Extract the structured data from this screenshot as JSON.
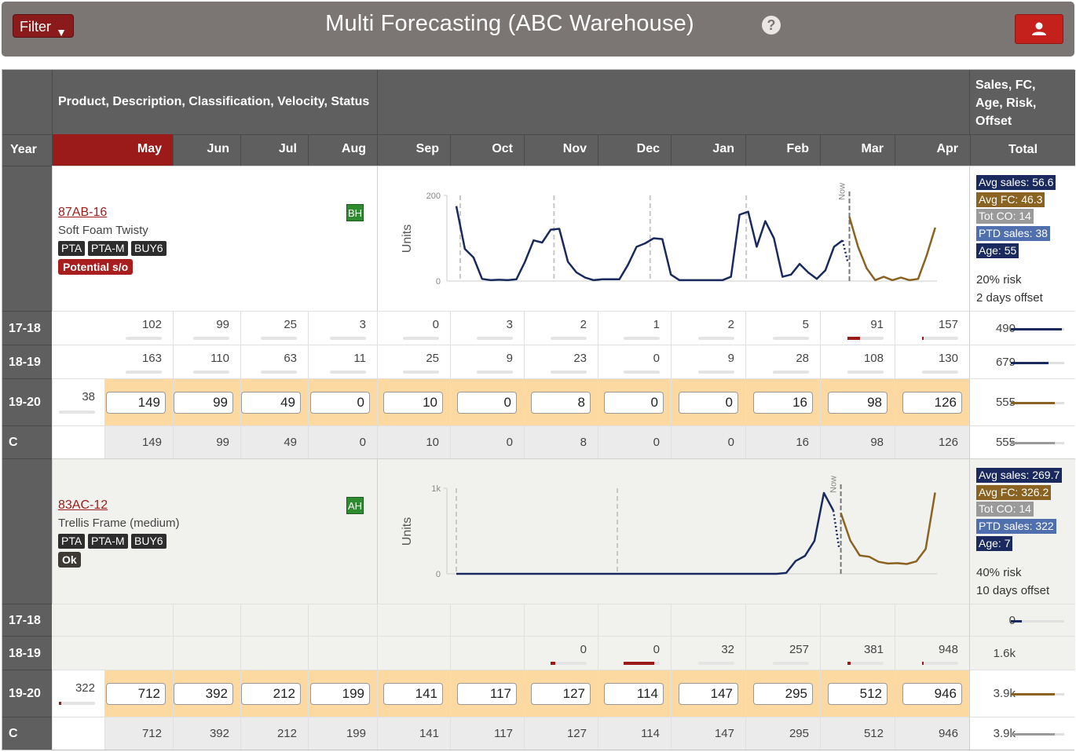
{
  "header": {
    "filter_label": "Filter",
    "filter_arrow": "▼",
    "title": "Multi Forecasting (ABC Warehouse)",
    "help_icon": "?",
    "user_icon": "user-icon"
  },
  "columns": {
    "info_header": "Product, Description, Classification, Velocity, Status",
    "total_header": "Sales, FC, Age, Risk, Offset",
    "year": "Year",
    "months": [
      "May",
      "Jun",
      "Jul",
      "Aug",
      "Sep",
      "Oct",
      "Nov",
      "Dec",
      "Jan",
      "Feb",
      "Mar",
      "Apr"
    ],
    "total": "Total",
    "selected_month": "May"
  },
  "colors": {
    "sales": "#1a2a5e",
    "forecast": "#8a6222",
    "accent": "#9b1b1b",
    "input_row": "#fbd9a1"
  },
  "products": [
    {
      "code": "87AB-16",
      "description": "Soft Foam Twisty",
      "tags": [
        "PTA",
        "PTA-M",
        "BUY6"
      ],
      "status": "Potential s/o",
      "velocity": "BH",
      "chart": {
        "ylabel": "Units",
        "ymax_label": "200",
        "ymin_label": "0",
        "now_label": "Now",
        "ymax": 200,
        "sales": [
          175,
          75,
          55,
          5,
          2,
          3,
          2,
          4,
          45,
          95,
          90,
          120,
          122,
          45,
          20,
          8,
          2,
          4,
          4,
          4,
          38,
          80,
          88,
          100,
          98,
          15,
          2,
          2,
          2,
          2,
          2,
          2,
          10,
          155,
          162,
          80,
          140,
          100,
          10,
          15,
          40,
          20,
          5,
          25,
          80,
          95
        ],
        "sales_dotted": [
          95,
          45
        ],
        "forecast": [
          150,
          80,
          30,
          2,
          10,
          2,
          8,
          2,
          5,
          60,
          125
        ]
      },
      "stats": {
        "avg_sales": "Avg sales: 56.6",
        "avg_fc": "Avg FC: 46.3",
        "tot_co": "Tot CO: 14",
        "ptd_sales": "PTD sales: 38",
        "age": "Age: 55",
        "risk": "20% risk",
        "offset": "2 days offset"
      },
      "rows": [
        {
          "year": "17-18",
          "pre": "",
          "values": [
            "102",
            "99",
            "25",
            "3",
            "0",
            "3",
            "2",
            "1",
            "2",
            "5",
            "91",
            "157"
          ],
          "fills": [
            0,
            0,
            0,
            0,
            0,
            0,
            0,
            0,
            0,
            0,
            0.35,
            0.03
          ],
          "total": "490",
          "total_fill": 0.95,
          "total_color": "#1a2a5e"
        },
        {
          "year": "18-19",
          "pre": "",
          "values": [
            "163",
            "110",
            "63",
            "11",
            "25",
            "9",
            "23",
            "0",
            "9",
            "28",
            "108",
            "130"
          ],
          "fills": [
            0,
            0,
            0,
            0,
            0,
            0,
            0,
            0,
            0,
            0,
            0,
            0
          ],
          "total": "679",
          "total_fill": 0.7,
          "total_color": "#1a2a5e"
        },
        {
          "year": "19-20",
          "pre": "38",
          "values": [
            "149",
            "99",
            "49",
            "0",
            "10",
            "0",
            "8",
            "0",
            "0",
            "16",
            "98",
            "126"
          ],
          "total": "555",
          "total_fill": 0.82,
          "total_color": "#8a6222"
        },
        {
          "year": "C",
          "pre": "",
          "values": [
            "149",
            "99",
            "49",
            "0",
            "10",
            "0",
            "8",
            "0",
            "0",
            "16",
            "98",
            "126"
          ],
          "total": "555",
          "total_fill": 0.82,
          "total_color": "#9a9a9a"
        }
      ]
    },
    {
      "code": "83AC-12",
      "description": "Trellis Frame (medium)",
      "tags": [
        "PTA",
        "PTA-M",
        "BUY6"
      ],
      "status": "Ok",
      "velocity": "AH",
      "chart": {
        "ylabel": "Units",
        "ymax_label": "1k",
        "ymin_label": "0",
        "now_label": "Now",
        "ymax": 1000,
        "sales": [
          0,
          0,
          0,
          0,
          0,
          0,
          0,
          0,
          0,
          0,
          0,
          0,
          0,
          0,
          0,
          0,
          0,
          0,
          0,
          0,
          0,
          0,
          0,
          0,
          0,
          0,
          0,
          0,
          0,
          0,
          0,
          0,
          0,
          0,
          0,
          10,
          150,
          210,
          385,
          945,
          740
        ],
        "sales_dotted": [
          740,
          310
        ],
        "forecast": [
          710,
          390,
          215,
          200,
          140,
          120,
          125,
          115,
          145,
          290,
          950
        ]
      },
      "stats": {
        "avg_sales": "Avg sales: 269.7",
        "avg_fc": "Avg FC: 326.2",
        "tot_co": "Tot CO: 14",
        "ptd_sales": "PTD sales: 322",
        "age": "Age: 7",
        "risk": "40% risk",
        "offset": "10 days offset"
      },
      "rows": [
        {
          "year": "17-18",
          "pre": "",
          "values": [
            "",
            "",
            "",
            "",
            "",
            "",
            "",
            "",
            "",
            "",
            "",
            ""
          ],
          "fills": [
            0,
            0,
            0,
            0,
            0,
            0,
            0,
            0,
            0,
            0,
            0,
            0
          ],
          "total": "0",
          "total_fill": 0.2,
          "total_color": "#1a2a5e"
        },
        {
          "year": "18-19",
          "pre": "",
          "values": [
            "",
            "",
            "",
            "",
            "",
            "",
            "0",
            "0",
            "32",
            "257",
            "381",
            "948"
          ],
          "fills": [
            0,
            0,
            0,
            0,
            0,
            0,
            0.12,
            0.85,
            0,
            0,
            0.08,
            0.03
          ],
          "total": "1.6k",
          "total_fill": 0,
          "total_color": "#1a2a5e"
        },
        {
          "year": "19-20",
          "pre": "322",
          "values": [
            "712",
            "392",
            "212",
            "199",
            "141",
            "117",
            "127",
            "114",
            "147",
            "295",
            "512",
            "946"
          ],
          "total": "3.9k",
          "total_fill": 0.82,
          "total_color": "#8a6222"
        },
        {
          "year": "C",
          "pre": "",
          "values": [
            "712",
            "392",
            "212",
            "199",
            "141",
            "117",
            "127",
            "114",
            "147",
            "295",
            "512",
            "946"
          ],
          "total": "3.9k",
          "total_fill": 0.82,
          "total_color": "#9a9a9a"
        }
      ]
    }
  ]
}
